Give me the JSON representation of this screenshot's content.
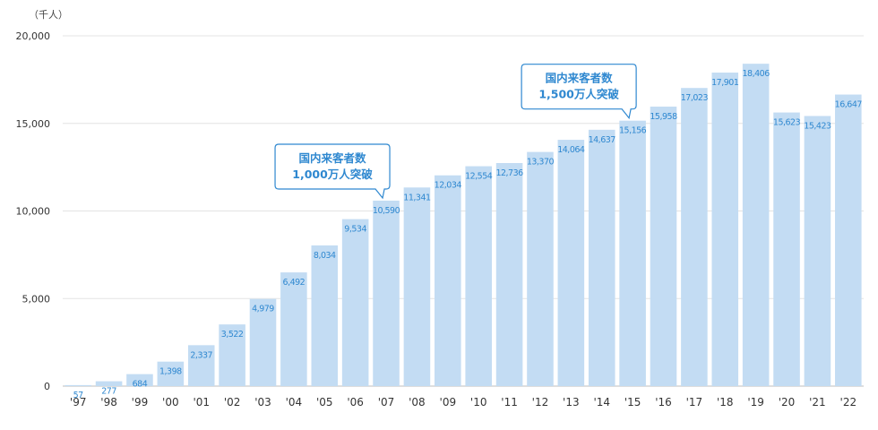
{
  "chart_data": {
    "type": "bar",
    "unit_label": "（千人）",
    "categories": [
      "'97",
      "'98",
      "'99",
      "'00",
      "'01",
      "'02",
      "'03",
      "'04",
      "'05",
      "'06",
      "'07",
      "'08",
      "'09",
      "'10",
      "'11",
      "'12",
      "'13",
      "'14",
      "'15",
      "'16",
      "'17",
      "'18",
      "'19",
      "'20",
      "'21",
      "'22"
    ],
    "values": [
      57,
      277,
      684,
      1398,
      2337,
      3522,
      4979,
      6492,
      8034,
      9534,
      10590,
      11341,
      12034,
      12554,
      12736,
      13370,
      14064,
      14637,
      15156,
      15958,
      17023,
      17901,
      18406,
      15623,
      15423,
      16647
    ],
    "data_labels": [
      "57",
      "277",
      "684",
      "1,398",
      "2,337",
      "3,522",
      "4,979",
      "6,492",
      "8,034",
      "9,534",
      "10,590",
      "11,341",
      "12,034",
      "12,554",
      "12,736",
      "13,370",
      "14,064",
      "14,637",
      "15,156",
      "15,958",
      "17,023",
      "17,901",
      "18,406",
      "15,623",
      "15,423",
      "16,647"
    ],
    "ylim": [
      0,
      20000
    ],
    "yticks": [
      {
        "value": 0,
        "label": "0"
      },
      {
        "value": 5000,
        "label": "5,000"
      },
      {
        "value": 10000,
        "label": "10,000"
      },
      {
        "value": 15000,
        "label": "15,000"
      },
      {
        "value": 20000,
        "label": "20,000"
      }
    ],
    "grid": true,
    "annotations": [
      {
        "category": "'07",
        "lines": [
          "国内来客者数",
          "1,000万人突破"
        ]
      },
      {
        "category": "'15",
        "lines": [
          "国内来客者数",
          "1,500万人突破"
        ]
      }
    ],
    "colors": {
      "bar": "#c3dcf3",
      "label": "#2f88d0",
      "callout_border": "#2f88d0"
    }
  }
}
